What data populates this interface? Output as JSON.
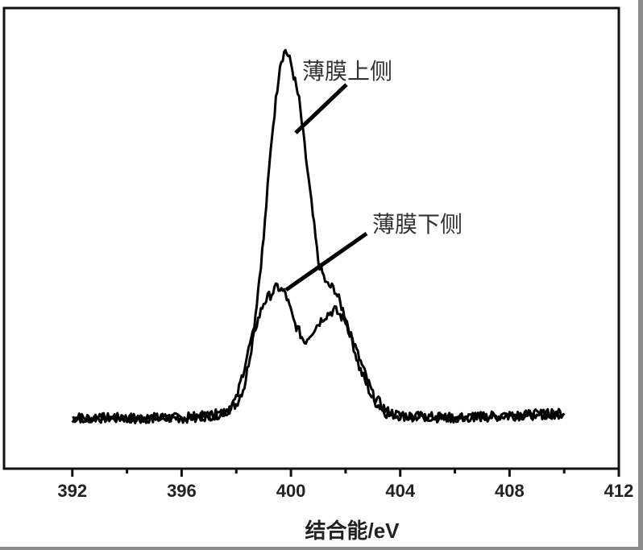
{
  "chart_data": {
    "type": "line",
    "title": "",
    "xlabel": "结合能/eV",
    "ylabel": "",
    "xlim": [
      389.5,
      412
    ],
    "ylim": [
      0,
      100
    ],
    "xticks": [
      392,
      396,
      400,
      404,
      408,
      412
    ],
    "xtick_labels": [
      "392",
      "396",
      "400",
      "404",
      "408",
      "412"
    ],
    "yticks_shown": false,
    "grid": false,
    "legend": "none",
    "line_color": "#000000",
    "series": [
      {
        "name": "薄膜上侧",
        "x": [
          392,
          394,
          396,
          397,
          397.5,
          398,
          398.3,
          398.6,
          399,
          399.3,
          399.6,
          399.8,
          400,
          400.3,
          400.6,
          401,
          401.3,
          401.6,
          402,
          402.5,
          403,
          403.5,
          404,
          406,
          408,
          410
        ],
        "y": [
          11,
          11,
          11,
          11.5,
          12,
          14,
          18,
          28,
          50,
          72,
          88,
          91,
          88,
          80,
          65,
          45,
          40,
          39,
          33,
          22,
          15,
          12,
          11.5,
          11,
          11.5,
          12
        ]
      },
      {
        "name": "薄膜下侧",
        "x": [
          392,
          394,
          396,
          397,
          397.5,
          398,
          398.5,
          399,
          399.5,
          399.8,
          400.1,
          400.5,
          400.8,
          401.2,
          401.6,
          402,
          402.5,
          403,
          403.5,
          404,
          406,
          408,
          410
        ],
        "y": [
          11,
          11,
          11,
          11.5,
          12,
          15,
          27,
          36,
          39.5,
          38,
          32,
          27.5,
          30,
          33,
          34.5,
          32,
          24,
          16,
          12.5,
          11.5,
          11,
          11.5,
          12
        ]
      }
    ],
    "annotations": [
      {
        "text": "薄膜上侧",
        "points_to": "薄膜上侧"
      },
      {
        "text": "薄膜下侧",
        "points_to": "薄膜下侧"
      }
    ]
  }
}
